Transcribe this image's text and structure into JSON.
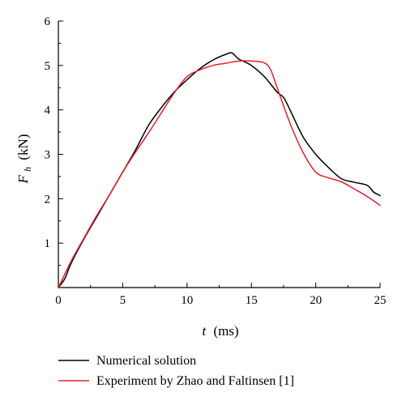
{
  "chart_data": {
    "type": "line",
    "x_axis": {
      "label_var": "t",
      "label_unit": "(ms)",
      "range": [
        0,
        25
      ],
      "ticks": [
        0,
        5,
        10,
        15,
        20,
        25
      ]
    },
    "y_axis": {
      "label_var": "F",
      "label_sub": "h",
      "label_unit": "(kN)",
      "range": [
        0,
        6
      ],
      "ticks": [
        1,
        2,
        3,
        4,
        5,
        6
      ]
    },
    "grid": false,
    "legend_position": "bottom",
    "series": [
      {
        "name": "Numerical solution",
        "color": "#000000",
        "points": [
          [
            0,
            0
          ],
          [
            0.5,
            0.2
          ],
          [
            1,
            0.55
          ],
          [
            2,
            1.1
          ],
          [
            3,
            1.6
          ],
          [
            4,
            2.1
          ],
          [
            5,
            2.6
          ],
          [
            6,
            3.1
          ],
          [
            7,
            3.65
          ],
          [
            8,
            4.05
          ],
          [
            9,
            4.4
          ],
          [
            10,
            4.68
          ],
          [
            11,
            4.93
          ],
          [
            12,
            5.12
          ],
          [
            13,
            5.25
          ],
          [
            13.5,
            5.28
          ],
          [
            14,
            5.15
          ],
          [
            15,
            5.0
          ],
          [
            16,
            4.75
          ],
          [
            17,
            4.4
          ],
          [
            17.5,
            4.28
          ],
          [
            18,
            4.0
          ],
          [
            19,
            3.4
          ],
          [
            20,
            3.0
          ],
          [
            21,
            2.7
          ],
          [
            22,
            2.45
          ],
          [
            23,
            2.37
          ],
          [
            24,
            2.3
          ],
          [
            24.5,
            2.15
          ],
          [
            25,
            2.07
          ]
        ]
      },
      {
        "name": "Experiment by Zhao and Faltinsen [1]",
        "color": "#e3202a",
        "points": [
          [
            0,
            0
          ],
          [
            0.5,
            0.3
          ],
          [
            1,
            0.6
          ],
          [
            2,
            1.12
          ],
          [
            3,
            1.63
          ],
          [
            4,
            2.1
          ],
          [
            5,
            2.6
          ],
          [
            6,
            3.05
          ],
          [
            7,
            3.48
          ],
          [
            8,
            3.93
          ],
          [
            9,
            4.38
          ],
          [
            10,
            4.75
          ],
          [
            11,
            4.9
          ],
          [
            12,
            5.0
          ],
          [
            13,
            5.05
          ],
          [
            14,
            5.1
          ],
          [
            15,
            5.1
          ],
          [
            16,
            5.06
          ],
          [
            16.5,
            4.9
          ],
          [
            17,
            4.5
          ],
          [
            18,
            3.7
          ],
          [
            19,
            3.05
          ],
          [
            20,
            2.6
          ],
          [
            21,
            2.47
          ],
          [
            22,
            2.38
          ],
          [
            23,
            2.22
          ],
          [
            24,
            2.05
          ],
          [
            25,
            1.85
          ]
        ]
      }
    ]
  }
}
